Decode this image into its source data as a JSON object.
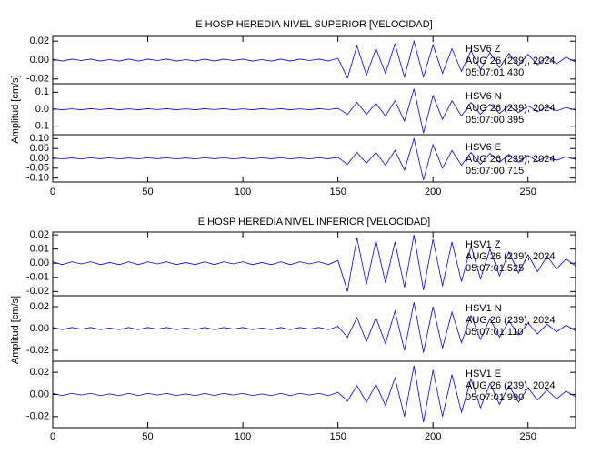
{
  "chart_data": [
    {
      "type": "line",
      "title": "E HOSP HEREDIA NIVEL SUPERIOR [VELOCIDAD]",
      "ylabel": "Amplitud [cm/s]",
      "xlim": [
        0,
        275
      ],
      "xticks": [
        0,
        50,
        100,
        150,
        200,
        250
      ],
      "x": [
        0,
        5,
        10,
        15,
        20,
        25,
        30,
        35,
        40,
        45,
        50,
        55,
        60,
        65,
        70,
        75,
        80,
        85,
        90,
        95,
        100,
        105,
        110,
        115,
        120,
        125,
        130,
        135,
        140,
        145,
        150,
        155,
        160,
        165,
        170,
        175,
        180,
        185,
        190,
        195,
        200,
        205,
        210,
        215,
        220,
        225,
        230,
        235,
        240,
        245,
        250,
        255,
        260,
        265,
        270,
        275
      ],
      "panels": [
        {
          "color": "#0000ee",
          "ylim": [
            -0.025,
            0.025
          ],
          "yticks": [
            -0.02,
            {
              "value": 0,
              "label": "0.00"
            },
            0.02
          ],
          "annotation": [
            "HSV6 Z",
            "AUG 26 (239), 2024",
            "05:07:01.430"
          ],
          "values": [
            0.001,
            -0.001,
            0.001,
            -0.0005,
            0.001,
            -0.001,
            0.0005,
            -0.001,
            0.001,
            -0.001,
            0.001,
            -0.0005,
            0.001,
            -0.001,
            0.0005,
            -0.001,
            0.001,
            -0.001,
            0.001,
            -0.0005,
            0.001,
            -0.001,
            0.0005,
            -0.001,
            0.001,
            -0.001,
            0.001,
            -0.0005,
            0.001,
            -0.001,
            0.002,
            -0.019,
            0.015,
            -0.016,
            0.012,
            -0.014,
            0.017,
            -0.018,
            0.02,
            -0.018,
            0.016,
            -0.014,
            0.012,
            -0.012,
            0.01,
            -0.01,
            0.008,
            -0.008,
            0.007,
            -0.006,
            0.006,
            -0.005,
            0.004,
            -0.004,
            0.003,
            -0.002
          ]
        },
        {
          "color": "#0000ee",
          "ylim": [
            -0.15,
            0.15
          ],
          "yticks": [
            -0.1,
            {
              "value": 0,
              "label": "0.0"
            },
            0.1
          ],
          "annotation": [
            "HSV6 N",
            "AUG 26 (239), 2024",
            "05:07:00.395"
          ],
          "values": [
            0.003,
            -0.003,
            0.002,
            -0.003,
            0.003,
            -0.002,
            0.003,
            -0.003,
            0.002,
            -0.003,
            0.003,
            -0.002,
            0.003,
            -0.003,
            0.002,
            -0.003,
            0.003,
            -0.002,
            0.003,
            -0.003,
            0.002,
            -0.003,
            0.003,
            -0.002,
            0.003,
            -0.003,
            0.002,
            -0.003,
            0.003,
            -0.002,
            0.005,
            -0.03,
            0.04,
            -0.03,
            0.035,
            -0.04,
            0.05,
            -0.07,
            0.12,
            -0.14,
            0.08,
            -0.06,
            0.05,
            -0.04,
            0.04,
            -0.03,
            0.03,
            -0.025,
            0.02,
            -0.02,
            0.02,
            -0.015,
            0.015,
            -0.01,
            0.01,
            -0.005
          ]
        },
        {
          "color": "#0000ee",
          "ylim": [
            -0.12,
            0.12
          ],
          "yticks": [
            {
              "value": -0.1,
              "label": "-0.10"
            },
            -0.05,
            {
              "value": 0,
              "label": "0.00"
            },
            0.05,
            {
              "value": 0.1,
              "label": "0.10"
            }
          ],
          "annotation": [
            "HSV6 E",
            "AUG 26 (239), 2024",
            "05:07:00.715"
          ],
          "values": [
            0.003,
            -0.003,
            0.002,
            -0.003,
            0.003,
            -0.002,
            0.003,
            -0.003,
            0.002,
            -0.003,
            0.003,
            -0.002,
            0.003,
            -0.003,
            0.002,
            -0.003,
            0.003,
            -0.002,
            0.003,
            -0.003,
            0.002,
            -0.003,
            0.003,
            -0.002,
            0.003,
            -0.003,
            0.002,
            -0.003,
            0.003,
            -0.002,
            0.005,
            -0.03,
            0.03,
            -0.025,
            0.03,
            -0.035,
            0.04,
            -0.06,
            0.1,
            -0.11,
            0.07,
            -0.05,
            0.04,
            -0.035,
            0.03,
            -0.03,
            0.025,
            -0.02,
            0.02,
            -0.02,
            0.015,
            -0.015,
            0.01,
            -0.01,
            0.008,
            -0.005
          ]
        }
      ]
    },
    {
      "type": "line",
      "title": "E HOSP HEREDIA NIVEL INFERIOR [VELOCIDAD]",
      "ylabel": "Amplitud [cm/s]",
      "xlim": [
        0,
        275
      ],
      "xticks": [
        0,
        50,
        100,
        150,
        200,
        250
      ],
      "x": [
        0,
        5,
        10,
        15,
        20,
        25,
        30,
        35,
        40,
        45,
        50,
        55,
        60,
        65,
        70,
        75,
        80,
        85,
        90,
        95,
        100,
        105,
        110,
        115,
        120,
        125,
        130,
        135,
        140,
        145,
        150,
        155,
        160,
        165,
        170,
        175,
        180,
        185,
        190,
        195,
        200,
        205,
        210,
        215,
        220,
        225,
        230,
        235,
        240,
        245,
        250,
        255,
        260,
        265,
        270,
        275
      ],
      "panels": [
        {
          "color": "#0000ee",
          "ylim": [
            -0.023,
            0.022
          ],
          "yticks": [
            -0.02,
            -0.01,
            {
              "value": 0,
              "label": "0.00"
            },
            0.01,
            0.02
          ],
          "annotation": [
            "HSV1 Z",
            "AUG 26 (239), 2024",
            "05:07:01.525"
          ],
          "values": [
            0.001,
            -0.001,
            0.001,
            -0.0005,
            0.001,
            -0.001,
            0.0005,
            -0.001,
            0.001,
            -0.001,
            0.001,
            -0.0005,
            0.001,
            -0.001,
            0.0005,
            -0.001,
            0.001,
            -0.001,
            0.001,
            -0.0005,
            0.001,
            -0.001,
            0.0005,
            -0.001,
            0.001,
            -0.001,
            0.001,
            -0.0005,
            0.001,
            -0.001,
            0.002,
            -0.02,
            0.018,
            -0.015,
            0.016,
            -0.014,
            0.015,
            -0.017,
            0.02,
            -0.019,
            0.017,
            -0.016,
            0.015,
            -0.013,
            0.012,
            -0.011,
            0.01,
            -0.009,
            0.008,
            -0.007,
            0.006,
            -0.006,
            0.005,
            -0.004,
            0.003,
            -0.002
          ]
        },
        {
          "color": "#0000ee",
          "ylim": [
            -0.03,
            0.03
          ],
          "yticks": [
            -0.02,
            {
              "value": 0,
              "label": "0.00"
            },
            0.02
          ],
          "annotation": [
            "HSV1 N",
            "AUG 26 (239), 2024",
            "05:07:01.110"
          ],
          "values": [
            0.001,
            -0.001,
            0.001,
            -0.0005,
            0.001,
            -0.001,
            0.0005,
            -0.001,
            0.001,
            -0.001,
            0.001,
            -0.0005,
            0.001,
            -0.001,
            0.0005,
            -0.001,
            0.001,
            -0.001,
            0.001,
            -0.0005,
            0.001,
            -0.001,
            0.0005,
            -0.001,
            0.001,
            -0.001,
            0.001,
            -0.0005,
            0.001,
            -0.001,
            0.002,
            -0.008,
            0.01,
            -0.012,
            0.01,
            -0.014,
            0.016,
            -0.02,
            0.024,
            -0.022,
            0.02,
            -0.018,
            0.015,
            -0.013,
            0.012,
            -0.01,
            0.009,
            -0.008,
            0.007,
            -0.006,
            0.005,
            -0.005,
            0.004,
            -0.003,
            0.003,
            -0.002
          ]
        },
        {
          "color": "#0000ee",
          "ylim": [
            -0.03,
            0.03
          ],
          "yticks": [
            -0.02,
            {
              "value": 0,
              "label": "0.00"
            },
            0.02
          ],
          "annotation": [
            "HSV1 E",
            "AUG 26 (239), 2024",
            "05:07:01.990"
          ],
          "values": [
            0.001,
            -0.001,
            0.001,
            -0.0005,
            0.001,
            -0.001,
            0.0005,
            -0.001,
            0.001,
            -0.001,
            0.001,
            -0.0005,
            0.001,
            -0.001,
            0.0005,
            -0.001,
            0.001,
            -0.001,
            0.001,
            -0.0005,
            0.001,
            -0.001,
            0.0005,
            -0.001,
            0.001,
            -0.001,
            0.001,
            -0.0005,
            0.001,
            -0.001,
            0.002,
            -0.006,
            0.008,
            -0.007,
            0.009,
            -0.01,
            0.015,
            -0.02,
            0.026,
            -0.025,
            0.022,
            -0.02,
            0.018,
            -0.016,
            0.014,
            -0.012,
            0.01,
            -0.009,
            0.008,
            -0.007,
            0.006,
            -0.005,
            0.004,
            -0.004,
            0.003,
            -0.002
          ]
        }
      ]
    }
  ]
}
